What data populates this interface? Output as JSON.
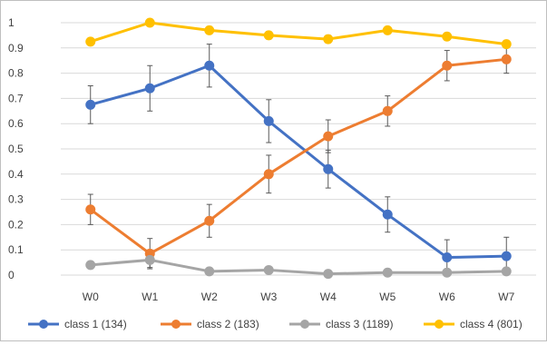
{
  "chart_data": {
    "type": "line",
    "title": "",
    "xlabel": "",
    "ylabel": "",
    "categories": [
      "W0",
      "W1",
      "W2",
      "W3",
      "W4",
      "W5",
      "W6",
      "W7"
    ],
    "ylim": [
      0,
      1
    ],
    "yticks": [
      0,
      0.1,
      0.2,
      0.3,
      0.4,
      0.5,
      0.6,
      0.7,
      0.8,
      0.9,
      1
    ],
    "ytick_labels": [
      "0",
      "0.1",
      "0.2",
      "0.3",
      "0.4",
      "0.5",
      "0.6",
      "0.7",
      "0.8",
      "0.9",
      "1"
    ],
    "grid": "horizontal",
    "legend_position": "bottom",
    "error_bars": true,
    "series": [
      {
        "name": "class 1 (134)",
        "color": "#4472C4",
        "values": [
          0.675,
          0.74,
          0.83,
          0.61,
          0.42,
          0.24,
          0.07,
          0.075
        ],
        "errors": [
          0.075,
          0.09,
          0.085,
          0.085,
          0.075,
          0.07,
          0.07,
          0.075
        ]
      },
      {
        "name": "class 2 (183)",
        "color": "#ED7D31",
        "values": [
          0.26,
          0.085,
          0.215,
          0.4,
          0.55,
          0.65,
          0.83,
          0.855
        ],
        "errors": [
          0.06,
          0.06,
          0.065,
          0.075,
          0.065,
          0.06,
          0.06,
          0.055
        ]
      },
      {
        "name": "class 3 (1189)",
        "color": "#A5A5A5",
        "values": [
          0.04,
          0.06,
          0.015,
          0.02,
          0.005,
          0.01,
          0.01,
          0.015
        ],
        "errors": [
          0.01,
          0.03,
          0.01,
          0.01,
          0.005,
          0.005,
          0.005,
          0.01
        ]
      },
      {
        "name": "class 4 (801)",
        "color": "#FFC000",
        "values": [
          0.925,
          1.0,
          0.97,
          0.95,
          0.935,
          0.97,
          0.945,
          0.915
        ],
        "errors": [
          0.01,
          0.005,
          0.015,
          0.015,
          0.015,
          0.01,
          0.015,
          0.015
        ]
      }
    ]
  }
}
